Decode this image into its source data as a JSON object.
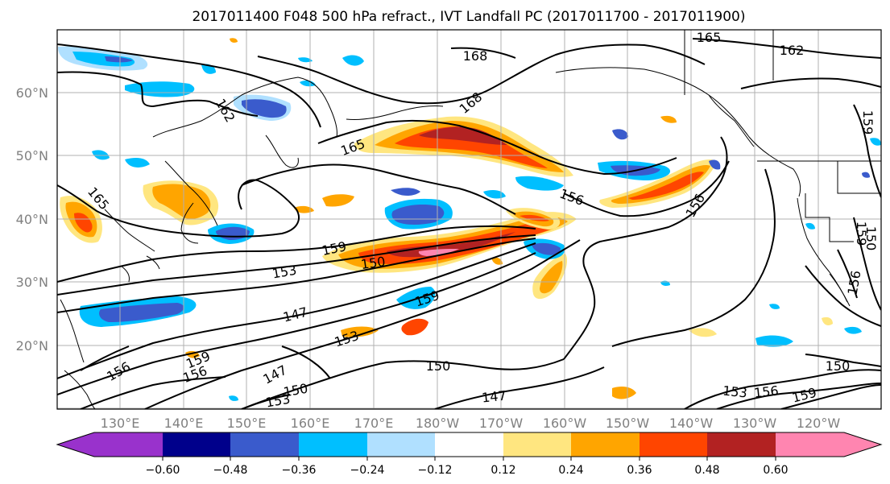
{
  "title": "2017011400 F048 500 hPa refract., IVT Landfall PC (2017011700 - 2017011900)",
  "lat_labels": [
    "60°N",
    "50°N",
    "40°N",
    "30°N",
    "20°N"
  ],
  "lon_labels": [
    "130°E",
    "140°E",
    "150°E",
    "160°E",
    "170°E",
    "180°W",
    "170°W",
    "160°W",
    "150°W",
    "140°W",
    "130°W",
    "120°W"
  ],
  "colorbar": {
    "ticks": [
      "−0.60",
      "−0.48",
      "−0.36",
      "−0.24",
      "−0.12",
      "0.12",
      "0.24",
      "0.36",
      "0.48",
      "0.60"
    ],
    "colors": [
      "#9932cc",
      "#00008b",
      "#3a5bcc",
      "#00bfff",
      "#b0e0ff",
      "#ffffff",
      "#ffe680",
      "#ffa500",
      "#ff4500",
      "#b22222",
      "#ff85b0"
    ]
  },
  "contour_labels": [
    "165",
    "162",
    "168",
    "168",
    "162",
    "159",
    "165",
    "165",
    "156",
    "156",
    "159",
    "150",
    "153",
    "147",
    "159",
    "153",
    "156",
    "159",
    "156",
    "147",
    "150",
    "150",
    "153",
    "150",
    "147",
    "153",
    "156",
    "159",
    "150",
    "156",
    "159"
  ]
}
